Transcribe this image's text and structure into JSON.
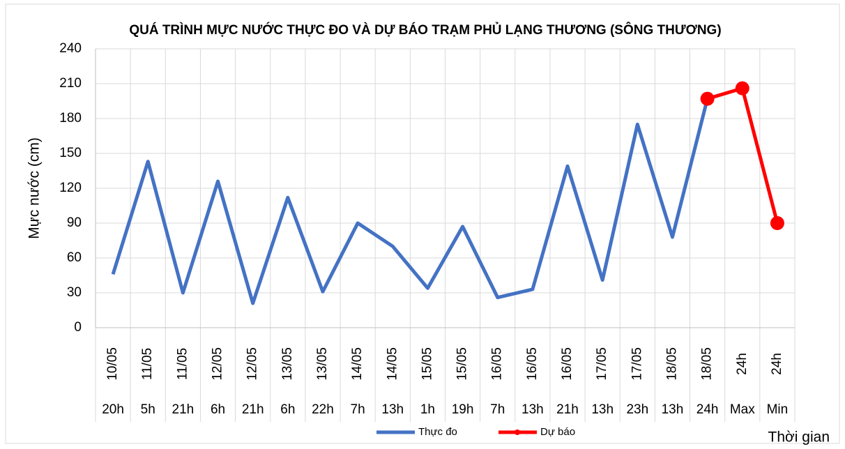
{
  "chart_data": {
    "type": "line",
    "title": "QUÁ TRÌNH MỰC NƯỚC THỰC ĐO VÀ DỰ BÁO TRẠM PHỦ LẠNG THƯƠNG (SÔNG THƯƠNG)",
    "ylabel": "Mực nước (cm)",
    "xlabel": "Thời gian",
    "categories": [
      [
        "10/05",
        "20h"
      ],
      [
        "11/05",
        "5h"
      ],
      [
        "11/05",
        "21h"
      ],
      [
        "12/05",
        "6h"
      ],
      [
        "12/05",
        "21h"
      ],
      [
        "13/05",
        "6h"
      ],
      [
        "13/05",
        "22h"
      ],
      [
        "14/05",
        "7h"
      ],
      [
        "14/05",
        "13h"
      ],
      [
        "15/05",
        "1h"
      ],
      [
        "15/05",
        "19h"
      ],
      [
        "16/05",
        "7h"
      ],
      [
        "16/05",
        "13h"
      ],
      [
        "16/05",
        "21h"
      ],
      [
        "17/05",
        "13h"
      ],
      [
        "17/05",
        "23h"
      ],
      [
        "18/05",
        "13h"
      ],
      [
        "18/05",
        "24h"
      ],
      [
        "24h",
        "Max"
      ],
      [
        "24h",
        "Min"
      ]
    ],
    "series": [
      {
        "name": "Thực đo",
        "color": "#4472c4",
        "values": [
          46,
          143,
          30,
          126,
          21,
          112,
          31,
          90,
          70,
          34,
          87,
          26,
          33,
          139,
          41,
          175,
          78,
          197,
          null,
          null
        ]
      },
      {
        "name": "Dự báo",
        "color": "#ff0000",
        "values": [
          null,
          null,
          null,
          null,
          null,
          null,
          null,
          null,
          null,
          null,
          null,
          null,
          null,
          null,
          null,
          null,
          null,
          197,
          206,
          90
        ]
      }
    ],
    "ylim": [
      0,
      240
    ],
    "yticks": [
      0,
      30,
      60,
      90,
      120,
      150,
      180,
      210,
      240
    ],
    "grid": true,
    "legend": "bottom"
  }
}
